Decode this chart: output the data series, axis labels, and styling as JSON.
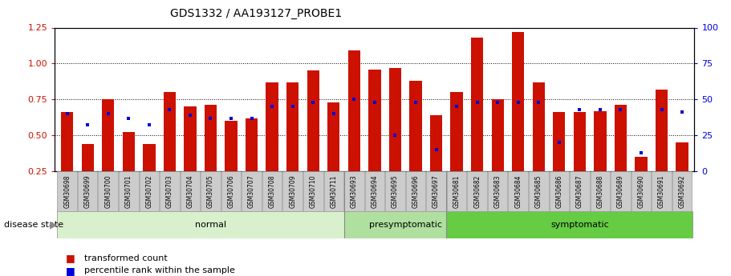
{
  "title": "GDS1332 / AA193127_PROBE1",
  "samples": [
    "GSM30698",
    "GSM30699",
    "GSM30700",
    "GSM30701",
    "GSM30702",
    "GSM30703",
    "GSM30704",
    "GSM30705",
    "GSM30706",
    "GSM30707",
    "GSM30708",
    "GSM30709",
    "GSM30710",
    "GSM30711",
    "GSM30693",
    "GSM30694",
    "GSM30695",
    "GSM30696",
    "GSM30697",
    "GSM30681",
    "GSM30682",
    "GSM30683",
    "GSM30684",
    "GSM30685",
    "GSM30686",
    "GSM30687",
    "GSM30688",
    "GSM30689",
    "GSM30690",
    "GSM30691",
    "GSM30692"
  ],
  "transformed_count": [
    0.66,
    0.44,
    0.75,
    0.52,
    0.44,
    0.8,
    0.7,
    0.71,
    0.6,
    0.62,
    0.87,
    0.87,
    0.95,
    0.73,
    1.09,
    0.96,
    0.97,
    0.88,
    0.64,
    0.8,
    1.18,
    0.75,
    1.22,
    0.87,
    0.66,
    0.66,
    0.67,
    0.71,
    0.35,
    0.82,
    0.45
  ],
  "percentile_rank": [
    0.65,
    0.57,
    0.65,
    0.62,
    0.57,
    0.68,
    0.64,
    0.62,
    0.62,
    0.62,
    0.7,
    0.7,
    0.73,
    0.65,
    0.75,
    0.73,
    0.5,
    0.73,
    0.4,
    0.7,
    0.73,
    0.73,
    0.73,
    0.73,
    0.45,
    0.68,
    0.68,
    0.68,
    0.38,
    0.68,
    0.66
  ],
  "groups": [
    {
      "label": "normal",
      "start": 0,
      "end": 14,
      "color": "#d8f0cc"
    },
    {
      "label": "presymptomatic",
      "start": 14,
      "end": 19,
      "color": "#b0e0a0"
    },
    {
      "label": "symptomatic",
      "start": 19,
      "end": 31,
      "color": "#66cc44"
    }
  ],
  "bar_color": "#cc1100",
  "dot_color": "#0000dd",
  "ylim_left": [
    0.25,
    1.25
  ],
  "ylim_right": [
    0,
    100
  ],
  "yticks_left": [
    0.25,
    0.5,
    0.75,
    1.0,
    1.25
  ],
  "yticks_right": [
    0,
    25,
    50,
    75,
    100
  ],
  "grid_values": [
    0.5,
    0.75,
    1.0
  ],
  "disease_state_label": "disease state",
  "legend_items": [
    "transformed count",
    "percentile rank within the sample"
  ],
  "legend_colors": [
    "#cc1100",
    "#0000dd"
  ]
}
